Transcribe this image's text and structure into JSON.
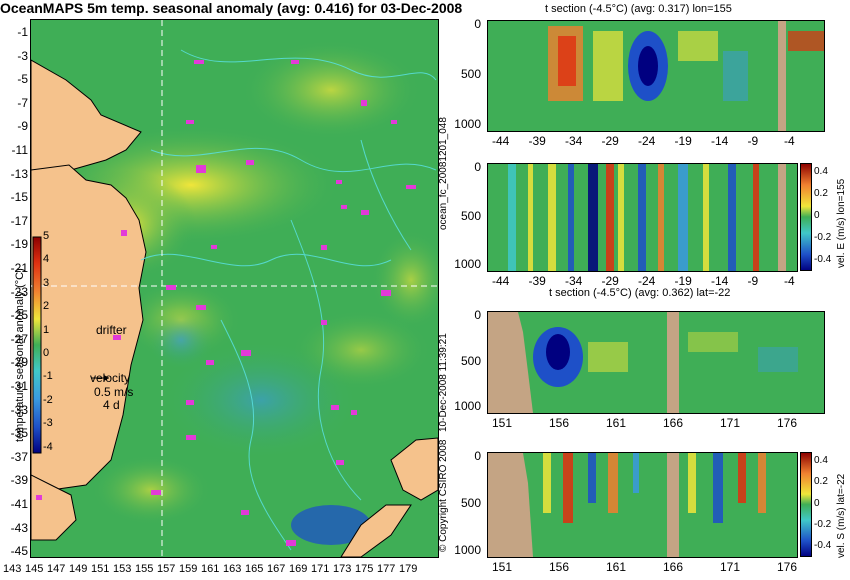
{
  "map": {
    "title": "OceanMAPS 5m temp. seasonal anomaly (avg: 0.416) for 03-Dec-2008",
    "lat_ticks": [
      "-1",
      "-3",
      "-5",
      "-7",
      "-9",
      "-11",
      "-13",
      "-15",
      "-17",
      "-19",
      "-21",
      "-23",
      "-25",
      "-27",
      "-29",
      "-31",
      "-33",
      "-35",
      "-37",
      "-39",
      "-41",
      "-43",
      "-45"
    ],
    "lon_ticks": [
      "143",
      "145",
      "147",
      "149",
      "151",
      "153",
      "155",
      "157",
      "159",
      "161",
      "163",
      "165",
      "167",
      "169",
      "171",
      "173",
      "175",
      "177",
      "179"
    ],
    "colorbar": {
      "label": "temperature seasonal anomaly (°C)",
      "ticks": [
        "5",
        "4",
        "3",
        "2",
        "1",
        "0",
        "-1",
        "-2",
        "-3",
        "-4"
      ]
    },
    "drifter_label": "drifter",
    "velocity_label": "velocity",
    "velocity_speed": "0.5 m/s",
    "velocity_days": "4 d",
    "colors": {
      "ocean": "#3fae56",
      "land": "#f5c28c",
      "drifter": "#e23ad8",
      "contour": "#59e0e0"
    }
  },
  "panels": [
    {
      "id": "t-section-lon",
      "title": "t section (-4.5°C) (avg: 0.317) lon=155",
      "y_ticks": [
        "0",
        "500",
        "1000"
      ],
      "x_ticks": [
        "-44",
        "-39",
        "-34",
        "-29",
        "-24",
        "-19",
        "-14",
        "-9",
        "-4"
      ]
    },
    {
      "id": "vel-e-lon",
      "title": "",
      "y_ticks": [
        "0",
        "500",
        "1000"
      ],
      "x_ticks": [
        "-44",
        "-39",
        "-34",
        "-29",
        "-24",
        "-19",
        "-14",
        "-9",
        "-4"
      ],
      "colorbar_label": "vel. E (m/s) lon=155",
      "colorbar_ticks": [
        "0.4",
        "0.2",
        "0",
        "-0.2",
        "-0.4"
      ]
    },
    {
      "id": "t-section-lat",
      "title": "t section (-4.5°C) (avg: 0.362) lat=-22",
      "y_ticks": [
        "0",
        "500",
        "1000"
      ],
      "x_ticks": [
        "151",
        "156",
        "161",
        "166",
        "171",
        "176"
      ]
    },
    {
      "id": "vel-s-lat",
      "title": "",
      "y_ticks": [
        "0",
        "500",
        "1000"
      ],
      "x_ticks": [
        "151",
        "156",
        "161",
        "166",
        "171",
        "176"
      ],
      "colorbar_label": "vel. S (m/s) lat=-22",
      "colorbar_ticks": [
        "0.4",
        "0.2",
        "0",
        "-0.2",
        "-0.4"
      ]
    }
  ],
  "side_text": {
    "run_id": "ocean_fc_20081201_048",
    "timestamp": "10-Dec-2008 11:39:21",
    "copyright": "© Copyright CSIRO 2008"
  }
}
